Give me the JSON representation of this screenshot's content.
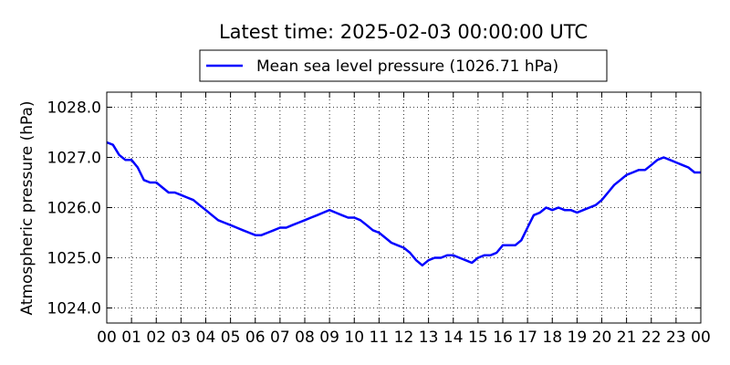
{
  "chart_data": {
    "type": "line",
    "title": "Latest time: 2025-02-03 00:00:00 UTC",
    "xlabel": "",
    "ylabel": "Atmospheric pressure (hPa)",
    "ylim": [
      1023.7,
      1028.3
    ],
    "xlim": [
      0,
      24
    ],
    "grid": true,
    "legend_position": "top-center",
    "x_tick_labels": [
      "00",
      "01",
      "02",
      "03",
      "04",
      "05",
      "06",
      "07",
      "08",
      "09",
      "10",
      "11",
      "12",
      "13",
      "14",
      "15",
      "16",
      "17",
      "18",
      "19",
      "20",
      "21",
      "22",
      "23",
      "00"
    ],
    "y_ticks": [
      1024.0,
      1025.0,
      1026.0,
      1027.0,
      1028.0
    ],
    "y_tick_labels": [
      "1024.0",
      "1025.0",
      "1026.0",
      "1027.0",
      "1028.0"
    ],
    "series": [
      {
        "name": "Mean sea level pressure (1026.71 hPa)",
        "color": "#0000ff",
        "x": [
          0,
          0.25,
          0.5,
          0.75,
          1.0,
          1.25,
          1.5,
          1.75,
          2.0,
          2.25,
          2.5,
          2.75,
          3.0,
          3.25,
          3.5,
          3.75,
          4.0,
          4.25,
          4.5,
          4.75,
          5.0,
          5.25,
          5.5,
          5.75,
          6.0,
          6.25,
          6.5,
          6.75,
          7.0,
          7.25,
          7.5,
          7.75,
          8.0,
          8.25,
          8.5,
          8.75,
          9.0,
          9.25,
          9.5,
          9.75,
          10.0,
          10.25,
          10.5,
          10.75,
          11.0,
          11.25,
          11.5,
          11.75,
          12.0,
          12.25,
          12.5,
          12.75,
          13.0,
          13.25,
          13.5,
          13.75,
          14.0,
          14.25,
          14.5,
          14.75,
          15.0,
          15.25,
          15.5,
          15.75,
          16.0,
          16.25,
          16.5,
          16.75,
          17.0,
          17.25,
          17.5,
          17.75,
          18.0,
          18.25,
          18.5,
          18.75,
          19.0,
          19.25,
          19.5,
          19.75,
          20.0,
          20.25,
          20.5,
          20.75,
          21.0,
          21.25,
          21.5,
          21.75,
          22.0,
          22.25,
          22.5,
          22.75,
          23.0,
          23.25,
          23.5,
          23.75,
          24.0
        ],
        "values": [
          1027.3,
          1027.25,
          1027.05,
          1026.95,
          1026.95,
          1026.8,
          1026.55,
          1026.5,
          1026.5,
          1026.4,
          1026.3,
          1026.3,
          1026.25,
          1026.2,
          1026.15,
          1026.05,
          1025.95,
          1025.85,
          1025.75,
          1025.7,
          1025.65,
          1025.6,
          1025.55,
          1025.5,
          1025.45,
          1025.45,
          1025.5,
          1025.55,
          1025.6,
          1025.6,
          1025.65,
          1025.7,
          1025.75,
          1025.8,
          1025.85,
          1025.9,
          1025.95,
          1025.9,
          1025.85,
          1025.8,
          1025.8,
          1025.75,
          1025.65,
          1025.55,
          1025.5,
          1025.4,
          1025.3,
          1025.25,
          1025.2,
          1025.1,
          1024.95,
          1024.85,
          1024.95,
          1025.0,
          1025.0,
          1025.05,
          1025.05,
          1025.0,
          1024.95,
          1024.9,
          1025.0,
          1025.05,
          1025.05,
          1025.1,
          1025.25,
          1025.25,
          1025.25,
          1025.35,
          1025.6,
          1025.85,
          1025.9,
          1026.0,
          1025.95,
          1026.0,
          1025.95,
          1025.95,
          1025.9,
          1025.95,
          1026.0,
          1026.05,
          1026.15,
          1026.3,
          1026.45,
          1026.55,
          1026.65,
          1026.7,
          1026.75,
          1026.75,
          1026.85,
          1026.95,
          1027.0,
          1026.95,
          1026.9,
          1026.85,
          1026.8,
          1026.7,
          1026.7
        ]
      }
    ]
  }
}
